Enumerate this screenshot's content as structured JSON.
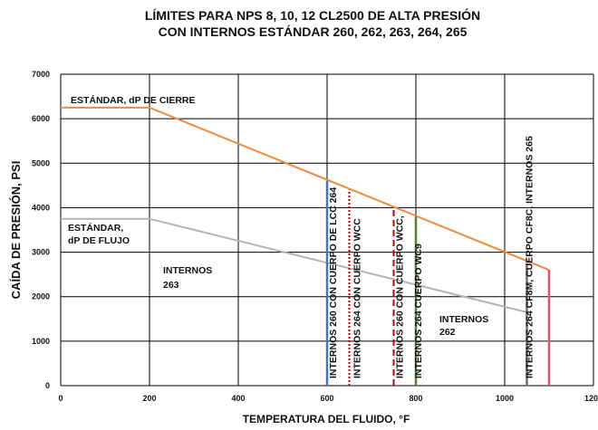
{
  "chart_data": {
    "type": "line",
    "title": [
      "LÍMITES PARA NPS 8, 10, 12 CL2500 DE ALTA PRESIÓN",
      "CON INTERNOS ESTÁNDAR 260, 262, 263, 264, 265"
    ],
    "x_label": "TEMPERATURA DEL FLUIDO, °F",
    "y_label": "CAÍDA DE PRESIÓN, PSI",
    "xlim": [
      0,
      1200
    ],
    "xticks": [
      0,
      200,
      400,
      600,
      800,
      1000,
      1200
    ],
    "ylim": [
      0,
      7000
    ],
    "yticks": [
      0,
      1000,
      2000,
      3000,
      4000,
      5000,
      6000,
      7000
    ],
    "grid": true,
    "series": [
      {
        "color": "#f08a3c",
        "x": [
          0,
          200,
          1100
        ],
        "values": [
          6250,
          6250,
          2600
        ]
      },
      {
        "color": "#b4b4b4",
        "x": [
          0,
          200,
          1050
        ],
        "values": [
          3750,
          3750,
          1650
        ]
      }
    ],
    "markers": [
      {
        "x": 600,
        "value": 4600,
        "color": "#4472c4",
        "style": "solid",
        "label": "INTERNOS 260 CON CUERPO DE LCC 264"
      },
      {
        "x": 650,
        "value": 4400,
        "color": "#c00000",
        "style": "dotted",
        "label": "INTERNOS 264 CON CUERPO WCC"
      },
      {
        "x": 750,
        "value": 4000,
        "color": "#c00000",
        "style": "dashed",
        "label": "INTERNOS 260 CON CUERPO WCC,"
      },
      {
        "x": 800,
        "value": 3800,
        "color": "#548235",
        "style": "solid",
        "label": "INTERNOS 264 CUERPO WC9"
      },
      {
        "x": 1050,
        "value": 2750,
        "color": "#707070",
        "style": "solid",
        "label": "INTERNOS 264 CF8M, CUERPO CF8C, INTERNOS 265"
      },
      {
        "x": 1100,
        "value": 2600,
        "color": "#e05070",
        "style": "solid"
      }
    ],
    "annotations": [
      "ESTÁNDAR, dP DE CIERRE",
      "ESTÁNDAR,",
      "dP DE FLUJO",
      "INTERNOS",
      "263",
      "INTERNOS",
      "262"
    ]
  }
}
